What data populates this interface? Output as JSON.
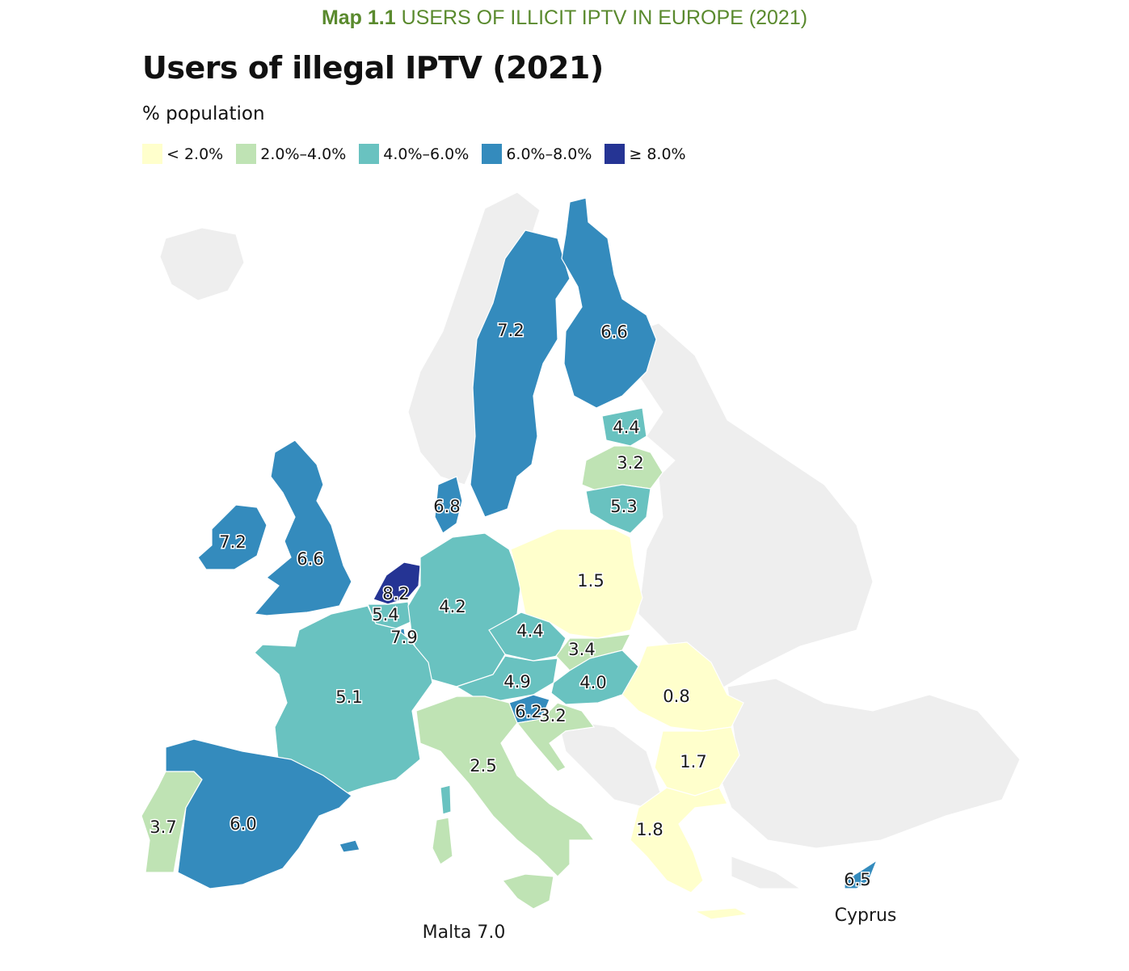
{
  "caption": {
    "prefix": "Map 1.1",
    "text": "USERS OF ILLICIT IPTV IN EUROPE (2021)"
  },
  "title": "Users of illegal IPTV (2021)",
  "subtitle": "% population",
  "legend": [
    {
      "label": "< 2.0%",
      "color": "#ffffcc"
    },
    {
      "label": "2.0%–4.0%",
      "color": "#bfe3b4"
    },
    {
      "label": "4.0%–6.0%",
      "color": "#69c2c0"
    },
    {
      "label": "6.0%–8.0%",
      "color": "#348bbd"
    },
    {
      "label": "≥ 8.0%",
      "color": "#253494"
    }
  ],
  "background_color": "#eeeeee",
  "regions": [
    {
      "name": "Sweden",
      "value": "7.2"
    },
    {
      "name": "Finland",
      "value": "6.6"
    },
    {
      "name": "Estonia",
      "value": "4.4"
    },
    {
      "name": "Latvia",
      "value": "3.2"
    },
    {
      "name": "Lithuania",
      "value": "5.3"
    },
    {
      "name": "Denmark",
      "value": "6.8"
    },
    {
      "name": "Ireland",
      "value": "7.2"
    },
    {
      "name": "United Kingdom",
      "value": "6.6"
    },
    {
      "name": "Netherlands",
      "value": "8.2"
    },
    {
      "name": "Belgium",
      "value": "5.4"
    },
    {
      "name": "Luxembourg",
      "value": "7.9"
    },
    {
      "name": "Germany",
      "value": "4.2"
    },
    {
      "name": "Poland",
      "value": "1.5"
    },
    {
      "name": "Czechia",
      "value": "4.4"
    },
    {
      "name": "Slovakia",
      "value": "3.4"
    },
    {
      "name": "Austria",
      "value": "4.9"
    },
    {
      "name": "Hungary",
      "value": "4.0"
    },
    {
      "name": "Romania",
      "value": "0.8"
    },
    {
      "name": "Slovenia",
      "value": "6.2"
    },
    {
      "name": "Croatia",
      "value": "3.2"
    },
    {
      "name": "France",
      "value": "5.1"
    },
    {
      "name": "Italy",
      "value": "2.5"
    },
    {
      "name": "Bulgaria",
      "value": "1.7"
    },
    {
      "name": "Greece",
      "value": "1.8"
    },
    {
      "name": "Portugal",
      "value": "3.7"
    },
    {
      "name": "Spain",
      "value": "6.0"
    },
    {
      "name": "Cyprus",
      "value": "6.5"
    }
  ],
  "notes": {
    "cyprus": "Cyprus",
    "malta": "Malta 7.0"
  }
}
